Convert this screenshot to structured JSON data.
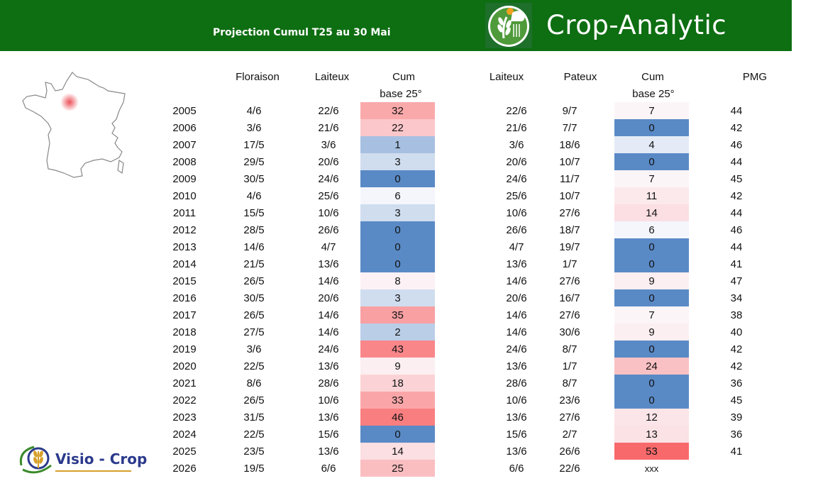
{
  "header": {
    "subtitle": "Projection Cumul T25 au 30 Mai",
    "brand": "Crop-Analytic"
  },
  "footer_logo": {
    "text": "Visio - Crop"
  },
  "columns": {
    "floraison": "Floraison",
    "laiteux1": "Laiteux",
    "cum1_line1": "Cum",
    "cum1_line2": "base 25°",
    "laiteux2": "Laiteux",
    "pateux": "Pateux",
    "cum2_line1": "Cum",
    "cum2_line2": "base 25°",
    "pmg": "PMG"
  },
  "colors": {
    "header_green": "#0e6e12",
    "high_red": "#f8696b",
    "zero_blue": "#5a8ac6",
    "neutral_white": "#fcfcff"
  },
  "rows": [
    {
      "year": "2005",
      "floraison": "4/6",
      "laiteux": "22/6",
      "cum1": "32",
      "laiteux2": "22/6",
      "pateux": "9/7",
      "cum2": "7",
      "pmg": "44"
    },
    {
      "year": "2006",
      "floraison": "3/6",
      "laiteux": "21/6",
      "cum1": "22",
      "laiteux2": "21/6",
      "pateux": "7/7",
      "cum2": "0",
      "pmg": "42"
    },
    {
      "year": "2007",
      "floraison": "17/5",
      "laiteux": "3/6",
      "cum1": "1",
      "laiteux2": "3/6",
      "pateux": "18/6",
      "cum2": "4",
      "pmg": "46"
    },
    {
      "year": "2008",
      "floraison": "29/5",
      "laiteux": "20/6",
      "cum1": "3",
      "laiteux2": "20/6",
      "pateux": "10/7",
      "cum2": "0",
      "pmg": "44"
    },
    {
      "year": "2009",
      "floraison": "30/5",
      "laiteux": "24/6",
      "cum1": "0",
      "laiteux2": "24/6",
      "pateux": "11/7",
      "cum2": "7",
      "pmg": "45"
    },
    {
      "year": "2010",
      "floraison": "4/6",
      "laiteux": "25/6",
      "cum1": "6",
      "laiteux2": "25/6",
      "pateux": "10/7",
      "cum2": "11",
      "pmg": "42"
    },
    {
      "year": "2011",
      "floraison": "15/5",
      "laiteux": "10/6",
      "cum1": "3",
      "laiteux2": "10/6",
      "pateux": "27/6",
      "cum2": "14",
      "pmg": "44"
    },
    {
      "year": "2012",
      "floraison": "28/5",
      "laiteux": "26/6",
      "cum1": "0",
      "laiteux2": "26/6",
      "pateux": "18/7",
      "cum2": "6",
      "pmg": "46"
    },
    {
      "year": "2013",
      "floraison": "14/6",
      "laiteux": "4/7",
      "cum1": "0",
      "laiteux2": "4/7",
      "pateux": "19/7",
      "cum2": "0",
      "pmg": "44"
    },
    {
      "year": "2014",
      "floraison": "21/5",
      "laiteux": "13/6",
      "cum1": "0",
      "laiteux2": "13/6",
      "pateux": "1/7",
      "cum2": "0",
      "pmg": "41"
    },
    {
      "year": "2015",
      "floraison": "26/5",
      "laiteux": "14/6",
      "cum1": "8",
      "laiteux2": "14/6",
      "pateux": "27/6",
      "cum2": "9",
      "pmg": "47"
    },
    {
      "year": "2016",
      "floraison": "30/5",
      "laiteux": "20/6",
      "cum1": "3",
      "laiteux2": "20/6",
      "pateux": "16/7",
      "cum2": "0",
      "pmg": "34"
    },
    {
      "year": "2017",
      "floraison": "26/5",
      "laiteux": "14/6",
      "cum1": "35",
      "laiteux2": "14/6",
      "pateux": "27/6",
      "cum2": "7",
      "pmg": "38"
    },
    {
      "year": "2018",
      "floraison": "27/5",
      "laiteux": "14/6",
      "cum1": "2",
      "laiteux2": "14/6",
      "pateux": "30/6",
      "cum2": "9",
      "pmg": "40"
    },
    {
      "year": "2019",
      "floraison": "3/6",
      "laiteux": "24/6",
      "cum1": "43",
      "laiteux2": "24/6",
      "pateux": "8/7",
      "cum2": "0",
      "pmg": "42"
    },
    {
      "year": "2020",
      "floraison": "22/5",
      "laiteux": "13/6",
      "cum1": "9",
      "laiteux2": "13/6",
      "pateux": "1/7",
      "cum2": "24",
      "pmg": "42"
    },
    {
      "year": "2021",
      "floraison": "8/6",
      "laiteux": "28/6",
      "cum1": "18",
      "laiteux2": "28/6",
      "pateux": "8/7",
      "cum2": "0",
      "pmg": "36"
    },
    {
      "year": "2022",
      "floraison": "26/5",
      "laiteux": "10/6",
      "cum1": "33",
      "laiteux2": "10/6",
      "pateux": "23/6",
      "cum2": "0",
      "pmg": "45"
    },
    {
      "year": "2023",
      "floraison": "31/5",
      "laiteux": "13/6",
      "cum1": "46",
      "laiteux2": "13/6",
      "pateux": "27/6",
      "cum2": "12",
      "pmg": "39"
    },
    {
      "year": "2024",
      "floraison": "22/5",
      "laiteux": "15/6",
      "cum1": "0",
      "laiteux2": "15/6",
      "pateux": "2/7",
      "cum2": "13",
      "pmg": "36"
    },
    {
      "year": "2025",
      "floraison": "23/5",
      "laiteux": "13/6",
      "cum1": "14",
      "laiteux2": "13/6",
      "pateux": "26/6",
      "cum2": "53",
      "pmg": "41"
    },
    {
      "year": "2026",
      "floraison": "19/5",
      "laiteux": "6/6",
      "cum1": "25",
      "laiteux2": "6/6",
      "pateux": "22/6",
      "cum2": "xxx",
      "pmg": ""
    }
  ]
}
